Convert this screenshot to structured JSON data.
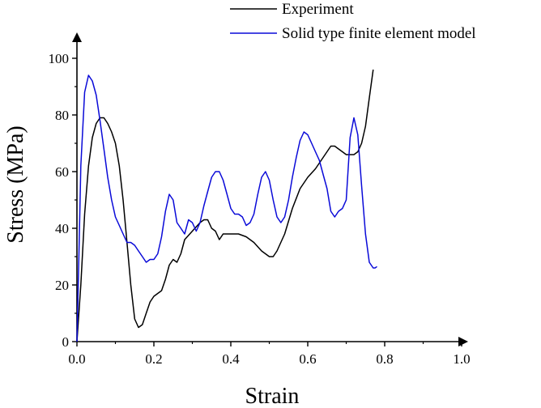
{
  "chart_data": {
    "type": "line",
    "xlabel": "Strain",
    "ylabel": "Stress (MPa)",
    "xlim": [
      0,
      1.0
    ],
    "ylim": [
      0,
      100
    ],
    "x_ticks": [
      0.0,
      0.2,
      0.4,
      0.6,
      0.8,
      1.0
    ],
    "x_tick_labels": [
      "0.0",
      "0.2",
      "0.4",
      "0.6",
      "0.8",
      "1.0"
    ],
    "y_ticks": [
      0,
      20,
      40,
      60,
      80,
      100
    ],
    "y_tick_labels": [
      "0",
      "20",
      "40",
      "60",
      "80",
      "100"
    ],
    "grid": false,
    "legend_position": "top-right",
    "series": [
      {
        "name": "Experiment",
        "color": "#000000",
        "points": [
          [
            0.0,
            0
          ],
          [
            0.01,
            20
          ],
          [
            0.02,
            45
          ],
          [
            0.03,
            62
          ],
          [
            0.04,
            72
          ],
          [
            0.05,
            77
          ],
          [
            0.06,
            79
          ],
          [
            0.07,
            79
          ],
          [
            0.08,
            77
          ],
          [
            0.09,
            74
          ],
          [
            0.1,
            70
          ],
          [
            0.11,
            62
          ],
          [
            0.12,
            50
          ],
          [
            0.13,
            35
          ],
          [
            0.14,
            20
          ],
          [
            0.15,
            8
          ],
          [
            0.16,
            5
          ],
          [
            0.17,
            6
          ],
          [
            0.18,
            10
          ],
          [
            0.19,
            14
          ],
          [
            0.2,
            16
          ],
          [
            0.22,
            18
          ],
          [
            0.23,
            22
          ],
          [
            0.24,
            27
          ],
          [
            0.25,
            29
          ],
          [
            0.26,
            28
          ],
          [
            0.27,
            31
          ],
          [
            0.28,
            36
          ],
          [
            0.3,
            39
          ],
          [
            0.32,
            42
          ],
          [
            0.33,
            43
          ],
          [
            0.34,
            43
          ],
          [
            0.35,
            40
          ],
          [
            0.36,
            39
          ],
          [
            0.37,
            36
          ],
          [
            0.38,
            38
          ],
          [
            0.4,
            38
          ],
          [
            0.42,
            38
          ],
          [
            0.44,
            37
          ],
          [
            0.46,
            35
          ],
          [
            0.48,
            32
          ],
          [
            0.5,
            30
          ],
          [
            0.51,
            30
          ],
          [
            0.52,
            32
          ],
          [
            0.54,
            38
          ],
          [
            0.56,
            47
          ],
          [
            0.58,
            54
          ],
          [
            0.6,
            58
          ],
          [
            0.62,
            61
          ],
          [
            0.64,
            65
          ],
          [
            0.66,
            69
          ],
          [
            0.67,
            69
          ],
          [
            0.68,
            68
          ],
          [
            0.69,
            67
          ],
          [
            0.7,
            66
          ],
          [
            0.72,
            66
          ],
          [
            0.73,
            67
          ],
          [
            0.74,
            70
          ],
          [
            0.75,
            76
          ],
          [
            0.76,
            86
          ],
          [
            0.77,
            96
          ]
        ]
      },
      {
        "name": "Solid type finite element model",
        "color": "#0a0ad8",
        "points": [
          [
            0.0,
            0
          ],
          [
            0.005,
            30
          ],
          [
            0.01,
            62
          ],
          [
            0.02,
            88
          ],
          [
            0.03,
            94
          ],
          [
            0.04,
            92
          ],
          [
            0.05,
            87
          ],
          [
            0.06,
            78
          ],
          [
            0.07,
            68
          ],
          [
            0.08,
            58
          ],
          [
            0.09,
            50
          ],
          [
            0.1,
            44
          ],
          [
            0.11,
            41
          ],
          [
            0.12,
            38
          ],
          [
            0.13,
            35
          ],
          [
            0.14,
            35
          ],
          [
            0.15,
            34
          ],
          [
            0.16,
            32
          ],
          [
            0.17,
            30
          ],
          [
            0.18,
            28
          ],
          [
            0.19,
            29
          ],
          [
            0.2,
            29
          ],
          [
            0.21,
            31
          ],
          [
            0.22,
            37
          ],
          [
            0.23,
            46
          ],
          [
            0.24,
            52
          ],
          [
            0.25,
            50
          ],
          [
            0.26,
            42
          ],
          [
            0.27,
            40
          ],
          [
            0.28,
            38
          ],
          [
            0.29,
            43
          ],
          [
            0.3,
            42
          ],
          [
            0.31,
            39
          ],
          [
            0.32,
            42
          ],
          [
            0.33,
            48
          ],
          [
            0.34,
            53
          ],
          [
            0.35,
            58
          ],
          [
            0.36,
            60
          ],
          [
            0.37,
            60
          ],
          [
            0.38,
            57
          ],
          [
            0.39,
            52
          ],
          [
            0.4,
            47
          ],
          [
            0.41,
            45
          ],
          [
            0.42,
            45
          ],
          [
            0.43,
            44
          ],
          [
            0.44,
            41
          ],
          [
            0.45,
            42
          ],
          [
            0.46,
            45
          ],
          [
            0.47,
            52
          ],
          [
            0.48,
            58
          ],
          [
            0.49,
            60
          ],
          [
            0.5,
            57
          ],
          [
            0.51,
            50
          ],
          [
            0.52,
            44
          ],
          [
            0.53,
            42
          ],
          [
            0.54,
            44
          ],
          [
            0.55,
            50
          ],
          [
            0.56,
            58
          ],
          [
            0.57,
            65
          ],
          [
            0.58,
            71
          ],
          [
            0.59,
            74
          ],
          [
            0.6,
            73
          ],
          [
            0.61,
            70
          ],
          [
            0.62,
            67
          ],
          [
            0.63,
            64
          ],
          [
            0.64,
            59
          ],
          [
            0.65,
            54
          ],
          [
            0.66,
            46
          ],
          [
            0.67,
            44
          ],
          [
            0.68,
            46
          ],
          [
            0.69,
            47
          ],
          [
            0.7,
            50
          ],
          [
            0.71,
            72
          ],
          [
            0.72,
            79
          ],
          [
            0.73,
            73
          ],
          [
            0.74,
            55
          ],
          [
            0.75,
            38
          ],
          [
            0.76,
            28
          ],
          [
            0.77,
            26
          ],
          [
            0.775,
            26
          ],
          [
            0.78,
            26.5
          ]
        ]
      }
    ]
  }
}
